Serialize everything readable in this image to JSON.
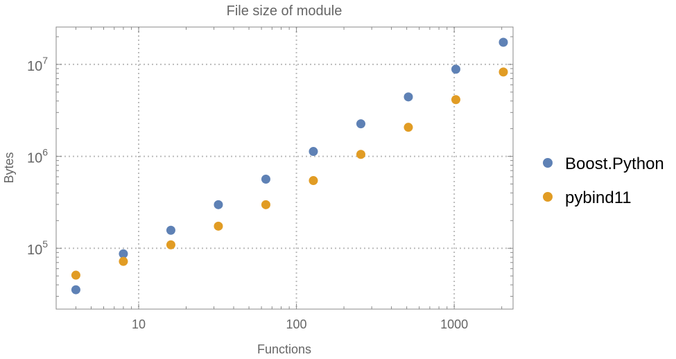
{
  "chart_data": {
    "type": "scatter",
    "title": "File size of module",
    "xlabel": "Functions",
    "ylabel": "Bytes",
    "xscale": "log",
    "yscale": "log",
    "xlim": [
      3.0,
      2360
    ],
    "ylim": [
      21800,
      25500000
    ],
    "grid": true,
    "legend_position": "right",
    "x_ticks": [
      {
        "value": 10,
        "label": "10"
      },
      {
        "value": 100,
        "label": "100"
      },
      {
        "value": 1000,
        "label": "1000"
      }
    ],
    "y_ticks": [
      {
        "value": 100000,
        "base": "10",
        "exp": "5"
      },
      {
        "value": 1000000,
        "base": "10",
        "exp": "6"
      },
      {
        "value": 10000000,
        "base": "10",
        "exp": "7"
      }
    ],
    "x": [
      4,
      8,
      16,
      32,
      64,
      128,
      256,
      512,
      1024,
      2048
    ],
    "series": [
      {
        "name": "Boost.Python",
        "color": "#5e81b5",
        "values": [
          35400,
          87000,
          157000,
          298000,
          565000,
          1130000,
          2260000,
          4430000,
          8860000,
          17400000
        ]
      },
      {
        "name": "pybind11",
        "color": "#e19c24",
        "values": [
          51000,
          72000,
          109000,
          174000,
          298000,
          545000,
          1050000,
          2070000,
          4140000,
          8270000
        ]
      }
    ]
  }
}
